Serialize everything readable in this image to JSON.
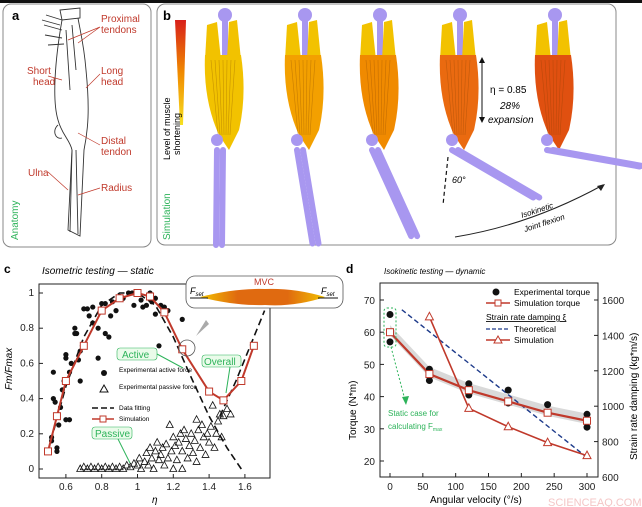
{
  "panel_a": {
    "letter": "a",
    "tag": "Anatomy",
    "labels": {
      "proximal_1": "Proximal",
      "proximal_2": "tendons",
      "short_1": "Short",
      "short_2": "head",
      "long_1": "Long",
      "long_2": "head",
      "distal_1": "Distal",
      "distal_2": "tendon",
      "ulna": "Ulna",
      "radius": "Radius"
    }
  },
  "panel_b": {
    "letter": "b",
    "tag": "Simulation",
    "colorbar_label_1": "Level of muscle",
    "colorbar_label_2": "shortening",
    "eta": "η = 0.85",
    "expansion_1": "28%",
    "expansion_2": "expansion",
    "angle": "60°",
    "arc_1": "Isokinetic",
    "arc_2": "Joint flexion",
    "colors": {
      "bone": "#a897f0",
      "muscle_low": "#f2c200",
      "muscle_mid": "#f08a00",
      "muscle_high": "#e05010"
    }
  },
  "panel_c": {
    "letter": "c",
    "inset": {
      "mvc": "MVC",
      "fset_left": "F",
      "fset_right": "F",
      "sub": "set"
    },
    "callouts": {
      "active": "Active",
      "overall": "Overall",
      "passive": "Passive"
    }
  },
  "panel_d": {
    "letter": "d",
    "static_1": "Static case for",
    "static_2": "calculating F",
    "static_sub": "max"
  },
  "watermark": "SCIENCEAQ.COM",
  "chart_data": [
    {
      "type": "scatter",
      "title": "Isometric testing — static",
      "xlabel": "η",
      "ylabel": "Fm/Fmax",
      "xlim": [
        0.45,
        1.79
      ],
      "ylim": [
        -0.03,
        1.05
      ],
      "xticks": [
        "0.6",
        "0.8",
        "1",
        "1.2",
        "1.4",
        "1.6"
      ],
      "yticks": [
        "0",
        "0.2",
        "0.4",
        "0.6",
        "0.8",
        "1"
      ],
      "legend": {
        "position": "center-left",
        "entries": [
          "Experimental active force",
          "Experimental passive force",
          "Data fitting",
          "Simulation"
        ]
      },
      "series": [
        {
          "name": "Experimental active force",
          "marker": "filled-circle",
          "points": [
            [
              0.52,
              0.16
            ],
            [
              0.52,
              0.18
            ],
            [
              0.53,
              0.55
            ],
            [
              0.53,
              0.4
            ],
            [
              0.54,
              0.38
            ],
            [
              0.55,
              0.12
            ],
            [
              0.55,
              0.1
            ],
            [
              0.56,
              0.25
            ],
            [
              0.57,
              0.35
            ],
            [
              0.58,
              0.45
            ],
            [
              0.59,
              0.5
            ],
            [
              0.6,
              0.65
            ],
            [
              0.6,
              0.63
            ],
            [
              0.6,
              0.28
            ],
            [
              0.62,
              0.28
            ],
            [
              0.62,
              0.55
            ],
            [
              0.63,
              0.6
            ],
            [
              0.65,
              0.8
            ],
            [
              0.65,
              0.77
            ],
            [
              0.66,
              0.77
            ],
            [
              0.67,
              0.62
            ],
            [
              0.68,
              0.67
            ],
            [
              0.68,
              0.5
            ],
            [
              0.7,
              0.91
            ],
            [
              0.72,
              0.91
            ],
            [
              0.73,
              0.87
            ],
            [
              0.75,
              0.92
            ],
            [
              0.75,
              0.83
            ],
            [
              0.78,
              0.63
            ],
            [
              0.78,
              0.8
            ],
            [
              0.8,
              0.94
            ],
            [
              0.82,
              0.94
            ],
            [
              0.82,
              0.77
            ],
            [
              0.84,
              0.75
            ],
            [
              0.85,
              0.87
            ],
            [
              0.86,
              0.95
            ],
            [
              0.88,
              0.9
            ],
            [
              0.9,
              0.98
            ],
            [
              0.92,
              0.97
            ],
            [
              0.95,
              1.0
            ],
            [
              0.97,
              1.0
            ],
            [
              0.98,
              0.93
            ],
            [
              1.0,
              1.0
            ],
            [
              1.02,
              0.96
            ],
            [
              1.03,
              0.92
            ],
            [
              1.05,
              0.93
            ],
            [
              1.07,
              1.0
            ],
            [
              1.08,
              0.95
            ],
            [
              1.1,
              0.97
            ],
            [
              1.1,
              0.88
            ],
            [
              1.12,
              0.7
            ],
            [
              1.13,
              0.93
            ],
            [
              1.15,
              0.92
            ],
            [
              1.17,
              0.9
            ],
            [
              1.25,
              0.85
            ]
          ]
        },
        {
          "name": "Experimental passive force",
          "marker": "open-triangle",
          "points": [
            [
              0.68,
              0
            ],
            [
              0.7,
              0.01
            ],
            [
              0.72,
              0
            ],
            [
              0.74,
              0.01
            ],
            [
              0.76,
              0
            ],
            [
              0.78,
              0.01
            ],
            [
              0.8,
              0
            ],
            [
              0.82,
              0.01
            ],
            [
              0.84,
              0
            ],
            [
              0.86,
              0.01
            ],
            [
              0.88,
              0
            ],
            [
              0.9,
              0.01
            ],
            [
              0.92,
              0
            ],
            [
              0.94,
              0.02
            ],
            [
              0.96,
              0.01
            ],
            [
              0.98,
              0.03
            ],
            [
              1.0,
              0.02
            ],
            [
              1.01,
              0.06
            ],
            [
              1.02,
              0.0
            ],
            [
              1.04,
              0.04
            ],
            [
              1.05,
              0.09
            ],
            [
              1.06,
              0.02
            ],
            [
              1.07,
              0.12
            ],
            [
              1.08,
              0.06
            ],
            [
              1.09,
              0.0
            ],
            [
              1.1,
              0.1
            ],
            [
              1.11,
              0.15
            ],
            [
              1.12,
              0.05
            ],
            [
              1.13,
              0.08
            ],
            [
              1.14,
              0.12
            ],
            [
              1.15,
              0.02
            ],
            [
              1.16,
              0.14
            ],
            [
              1.17,
              0.06
            ],
            [
              1.18,
              0.25
            ],
            [
              1.19,
              0.1
            ],
            [
              1.2,
              0.0
            ],
            [
              1.2,
              0.18
            ],
            [
              1.21,
              0.13
            ],
            [
              1.22,
              0.05
            ],
            [
              1.23,
              0.15
            ],
            [
              1.24,
              0.2
            ],
            [
              1.25,
              0.0
            ],
            [
              1.25,
              0.1
            ],
            [
              1.26,
              0.22
            ],
            [
              1.27,
              0.17
            ],
            [
              1.28,
              0.06
            ],
            [
              1.29,
              0.13
            ],
            [
              1.3,
              0.2
            ],
            [
              1.31,
              0.09
            ],
            [
              1.32,
              0.16
            ],
            [
              1.33,
              0.28
            ],
            [
              1.33,
              0.04
            ],
            [
              1.34,
              0.22
            ],
            [
              1.35,
              0.12
            ],
            [
              1.36,
              0.25
            ],
            [
              1.37,
              0.18
            ],
            [
              1.38,
              0.08
            ],
            [
              1.39,
              0.2
            ],
            [
              1.4,
              0.15
            ],
            [
              1.41,
              0.24
            ],
            [
              1.42,
              0.36
            ],
            [
              1.43,
              0.12
            ],
            [
              1.44,
              0.2
            ],
            [
              1.45,
              0.27
            ],
            [
              1.46,
              0.31
            ],
            [
              1.47,
              0.18
            ],
            [
              1.48,
              0.3
            ],
            [
              1.5,
              0.34
            ],
            [
              1.52,
              0.31
            ]
          ]
        },
        {
          "name": "Data fitting",
          "style": "dashed",
          "points": [
            [
              0.5,
              0.1
            ],
            [
              0.6,
              0.47
            ],
            [
              0.7,
              0.75
            ],
            [
              0.8,
              0.93
            ],
            [
              0.9,
              1.0
            ],
            [
              1.0,
              1.0
            ],
            [
              1.1,
              0.93
            ],
            [
              1.2,
              0.75
            ],
            [
              1.3,
              0.52
            ],
            [
              1.4,
              0.3
            ],
            [
              1.5,
              0.12
            ],
            [
              1.58,
              0.0
            ]
          ],
          "passive_points": [
            [
              1.46,
              0.3
            ],
            [
              1.55,
              0.5
            ],
            [
              1.65,
              0.75
            ],
            [
              1.71,
              0.9
            ]
          ]
        },
        {
          "name": "Simulation",
          "marker": "open-square",
          "points": [
            [
              0.5,
              0.1
            ],
            [
              0.55,
              0.3
            ],
            [
              0.6,
              0.5
            ],
            [
              0.7,
              0.7
            ],
            [
              0.8,
              0.9
            ],
            [
              0.9,
              0.97
            ],
            [
              1.0,
              1.0
            ],
            [
              1.07,
              0.98
            ],
            [
              1.15,
              0.89
            ],
            [
              1.25,
              0.68
            ],
            [
              1.4,
              0.44
            ],
            [
              1.48,
              0.39
            ],
            [
              1.58,
              0.5
            ],
            [
              1.65,
              0.7
            ]
          ]
        }
      ]
    },
    {
      "type": "line",
      "title": "Isokinetic testing — dynamic",
      "xlabel": "Angular velocity (°/s)",
      "ylabel": "Torque (N*m)",
      "ylabel_right": "Strain rate damping (kg*m/s)",
      "xlim": [
        -10,
        320
      ],
      "ylim": [
        15,
        75
      ],
      "ylim_right": [
        600,
        1700
      ],
      "xticks": [
        "0",
        "50",
        "100",
        "150",
        "200",
        "250",
        "300"
      ],
      "yticks": [
        "20",
        "30",
        "40",
        "50",
        "60",
        "70"
      ],
      "yticks_right": [
        "600",
        "800",
        "1000",
        "1200",
        "1400",
        "1600"
      ],
      "legend": {
        "position": "top-right",
        "entries": [
          "Experimental torque",
          "Simulation torque",
          "Theoretical",
          "Simulation"
        ],
        "group_title": "Strain rate damping ξ"
      },
      "series": [
        {
          "name": "Experimental torque",
          "axis": "left",
          "marker": "filled-circle",
          "points": [
            [
              0,
              65.5
            ],
            [
              0,
              57
            ],
            [
              60,
              48.5
            ],
            [
              60,
              45
            ],
            [
              120,
              44
            ],
            [
              120,
              40.5
            ],
            [
              180,
              42
            ],
            [
              180,
              38
            ],
            [
              240,
              37.5
            ],
            [
              300,
              34.5
            ],
            [
              300,
              30.5
            ]
          ]
        },
        {
          "name": "Simulation torque",
          "axis": "left",
          "marker": "open-square",
          "points": [
            [
              0,
              60
            ],
            [
              60,
              47
            ],
            [
              120,
              42
            ],
            [
              180,
              38.5
            ],
            [
              240,
              35
            ],
            [
              300,
              32.5
            ]
          ]
        },
        {
          "name": "Theoretical",
          "axis": "right",
          "style": "dashed",
          "points": [
            [
              18,
              1545
            ],
            [
              300,
              710
            ]
          ]
        },
        {
          "name": "Simulation",
          "axis": "right",
          "marker": "open-triangle",
          "points": [
            [
              60,
              1505
            ],
            [
              120,
              988
            ],
            [
              180,
              884
            ],
            [
              240,
              794
            ],
            [
              300,
              721
            ]
          ]
        }
      ]
    }
  ]
}
